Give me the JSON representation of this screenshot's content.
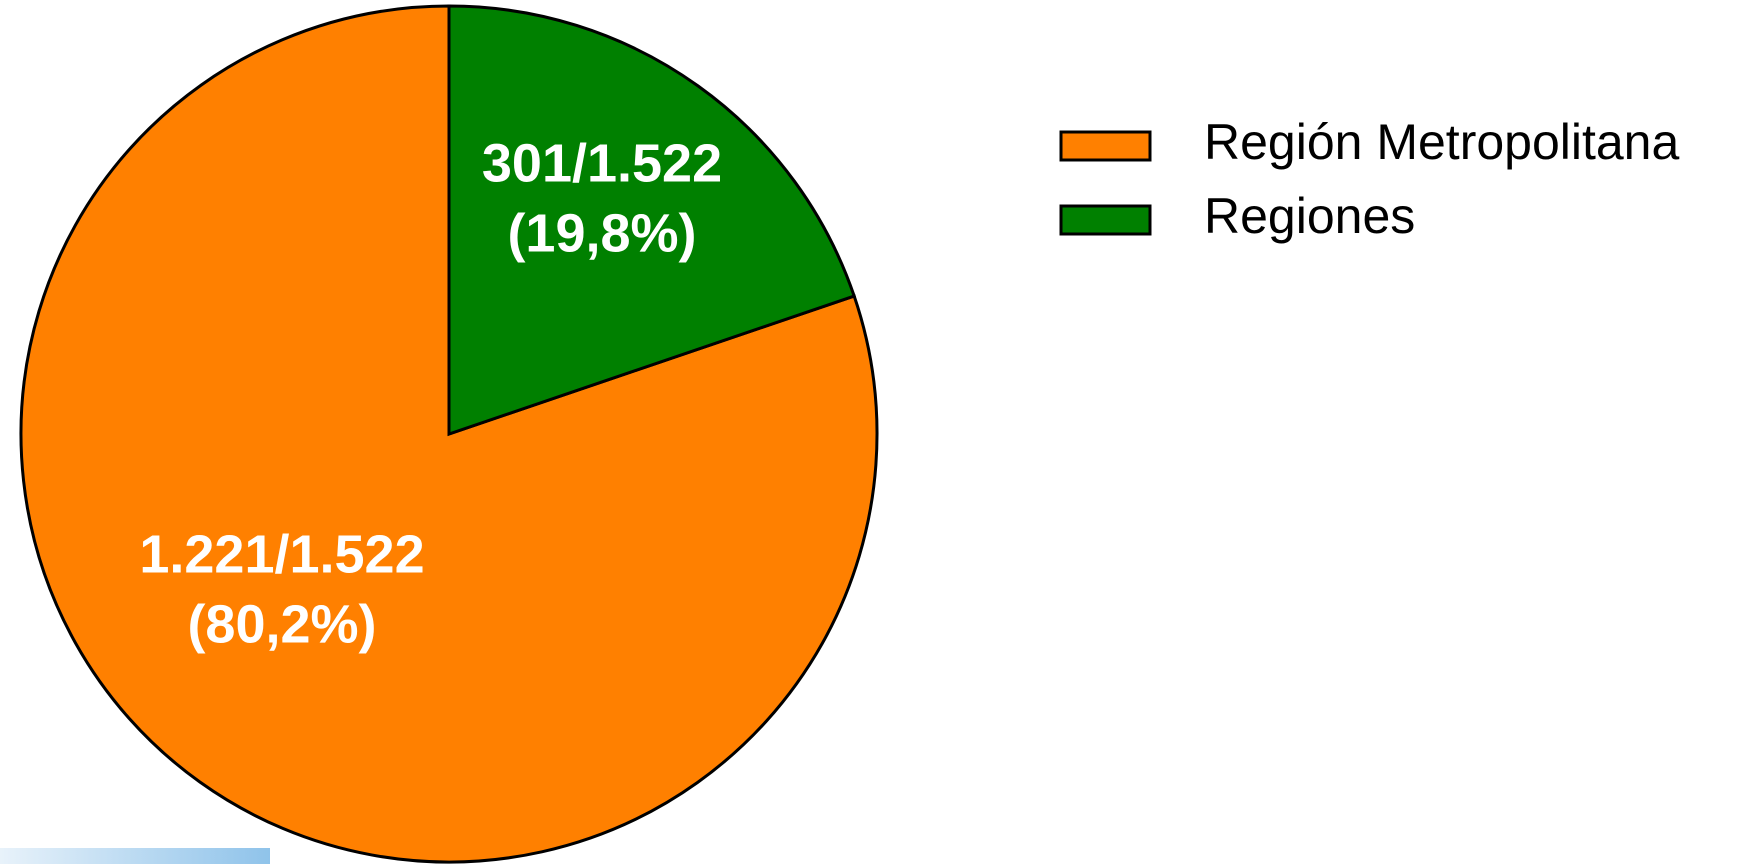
{
  "chart_data": {
    "type": "pie",
    "categories": [
      "Región Metropolitana",
      "Regiones"
    ],
    "values": [
      1221,
      301
    ],
    "value_labels": [
      "1.221/1.522",
      "301/1.522"
    ],
    "percents": [
      80.2,
      19.8
    ],
    "percent_labels": [
      "(80,2%)",
      "(19,8%)"
    ],
    "colors": [
      "#ff8000",
      "#008000"
    ],
    "legend": "right"
  }
}
